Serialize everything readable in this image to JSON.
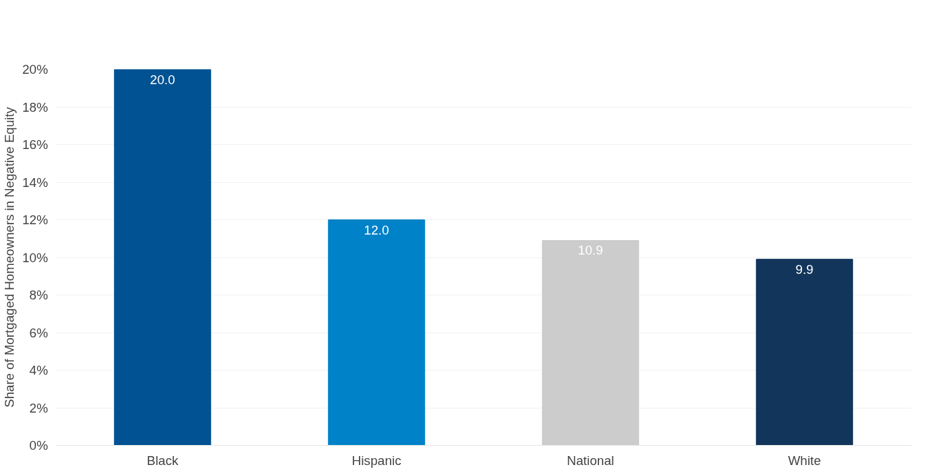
{
  "chart_data": {
    "type": "bar",
    "ylabel": "Share of Mortgaged Homeowners in Negative Equity",
    "categories": [
      "Black",
      "Hispanic",
      "National",
      "White"
    ],
    "values": [
      20.0,
      12.0,
      10.9,
      9.9
    ],
    "colors": [
      "#005293",
      "#0082c8",
      "#cccccd",
      "#12355b"
    ],
    "value_labels": [
      "20.0",
      "12.0",
      "10.9",
      "9.9"
    ],
    "ylim": [
      0,
      20
    ],
    "yticks": [
      {
        "value": 0,
        "label": "0%"
      },
      {
        "value": 2,
        "label": "2%"
      },
      {
        "value": 4,
        "label": "4%"
      },
      {
        "value": 6,
        "label": "6%"
      },
      {
        "value": 8,
        "label": "8%"
      },
      {
        "value": 10,
        "label": "10%"
      },
      {
        "value": 12,
        "label": "12%"
      },
      {
        "value": 14,
        "label": "14%"
      },
      {
        "value": 16,
        "label": "16%"
      },
      {
        "value": 18,
        "label": "18%"
      },
      {
        "value": 20,
        "label": "20%"
      }
    ],
    "grid": "y"
  }
}
